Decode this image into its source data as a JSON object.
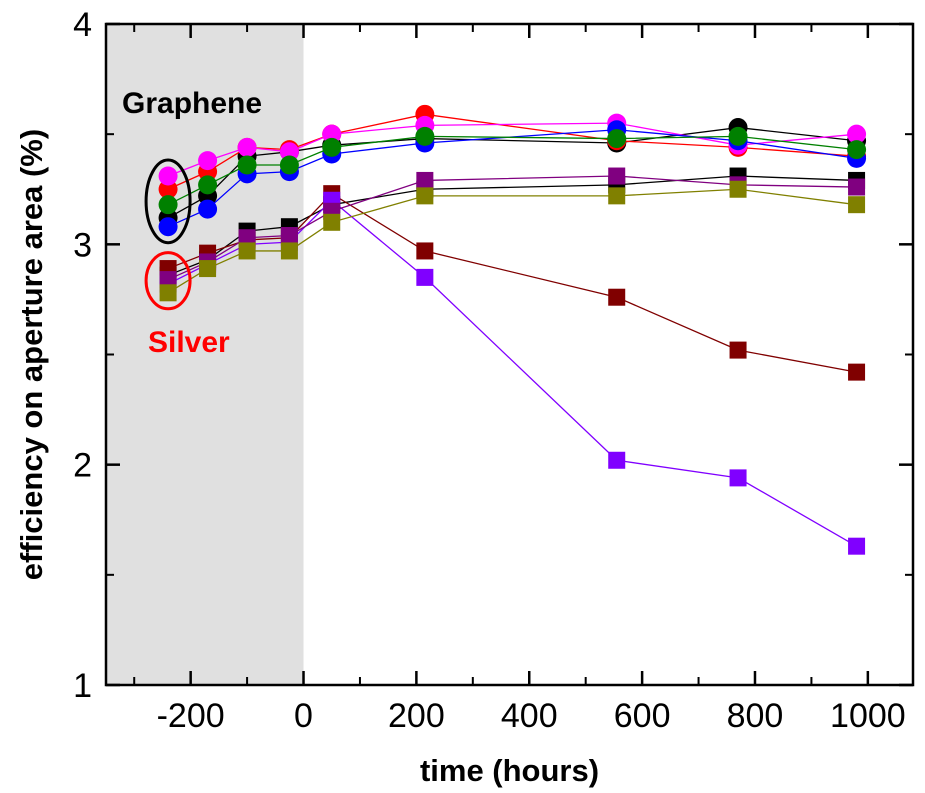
{
  "chart_data": {
    "type": "line",
    "xlabel": "time (hours)",
    "ylabel": "efficiency on aperture area (%)",
    "xlim": [
      -350,
      1080
    ],
    "ylim": [
      1,
      4
    ],
    "x_ticks": [
      -200,
      0,
      200,
      400,
      600,
      800,
      1000
    ],
    "x_tick_labels": [
      "-200",
      "0",
      "200",
      "400",
      "600",
      "800",
      "1000"
    ],
    "y_ticks": [
      1,
      2,
      3,
      4
    ],
    "y_tick_labels": [
      "1",
      "2",
      "3",
      "4"
    ],
    "shaded_region": {
      "x_start": -350,
      "x_end": 0,
      "color": "#e0e0e0"
    },
    "annotations": [
      {
        "text": "Graphene",
        "color": "#000000",
        "marks_group": "graphene"
      },
      {
        "text": "Silver",
        "color": "#ff0000",
        "marks_group": "silver"
      }
    ],
    "grid": false,
    "legend": "none",
    "x": [
      -240,
      -170,
      -100,
      -25,
      50,
      215,
      555,
      770,
      980
    ],
    "series": [
      {
        "group": "graphene",
        "marker": "circle",
        "color": "#000000",
        "values": [
          3.12,
          3.22,
          3.4,
          3.42,
          3.45,
          3.48,
          3.46,
          3.53,
          3.47
        ]
      },
      {
        "group": "graphene",
        "marker": "circle",
        "color": "#ff0000",
        "values": [
          3.25,
          3.33,
          3.44,
          3.43,
          3.5,
          3.59,
          3.47,
          3.44,
          3.4
        ]
      },
      {
        "group": "graphene",
        "marker": "circle",
        "color": "#ff00ff",
        "values": [
          3.31,
          3.38,
          3.44,
          3.42,
          3.5,
          3.54,
          3.55,
          3.45,
          3.5
        ]
      },
      {
        "group": "graphene",
        "marker": "circle",
        "color": "#0000ff",
        "values": [
          3.08,
          3.16,
          3.32,
          3.33,
          3.41,
          3.46,
          3.52,
          3.47,
          3.39
        ]
      },
      {
        "group": "graphene",
        "marker": "circle",
        "color": "#008000",
        "values": [
          3.18,
          3.27,
          3.36,
          3.36,
          3.44,
          3.49,
          3.48,
          3.49,
          3.43
        ]
      },
      {
        "group": "silver",
        "marker": "square",
        "color": "#000000",
        "values": [
          2.86,
          2.93,
          3.06,
          3.08,
          3.18,
          3.25,
          3.27,
          3.31,
          3.29
        ]
      },
      {
        "group": "silver",
        "marker": "square",
        "color": "#800000",
        "values": [
          2.89,
          2.96,
          3.02,
          3.03,
          3.23,
          2.97,
          2.76,
          2.52,
          2.42
        ]
      },
      {
        "group": "silver",
        "marker": "square",
        "color": "#8000ff",
        "values": [
          2.82,
          2.91,
          3.0,
          3.01,
          3.2,
          2.85,
          2.02,
          1.94,
          1.63
        ]
      },
      {
        "group": "silver",
        "marker": "square",
        "color": "#800080",
        "values": [
          2.84,
          2.92,
          3.03,
          3.04,
          3.15,
          3.29,
          3.31,
          3.27,
          3.26
        ]
      },
      {
        "group": "silver",
        "marker": "square",
        "color": "#808000",
        "values": [
          2.78,
          2.89,
          2.97,
          2.97,
          3.1,
          3.22,
          3.22,
          3.25,
          3.18
        ]
      }
    ]
  }
}
